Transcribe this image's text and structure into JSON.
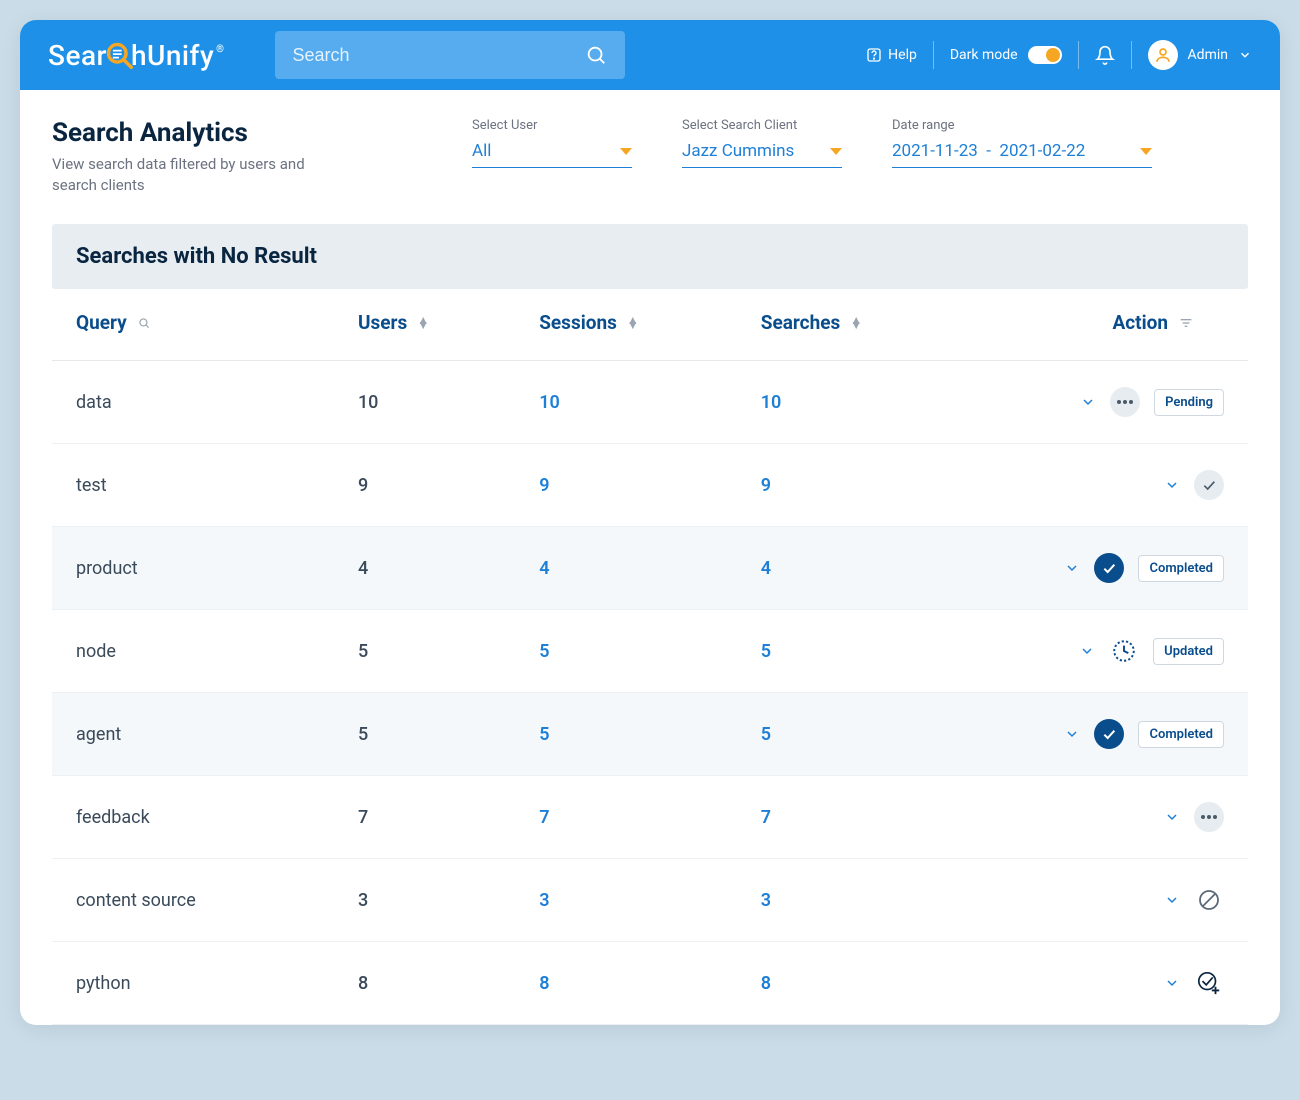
{
  "brand": {
    "name_left": "Sear",
    "name_right": "hUnify"
  },
  "topbar": {
    "search_placeholder": "Search",
    "help": "Help",
    "dark_mode": "Dark mode",
    "user_label": "Admin"
  },
  "page": {
    "title": "Search Analytics",
    "subtitle": "View search data filtered by users and search clients"
  },
  "filters": {
    "user": {
      "label": "Select User",
      "value": "All"
    },
    "client": {
      "label": "Select Search Client",
      "value": "Jazz Cummins"
    },
    "date": {
      "label": "Date range",
      "from": "2021-11-23",
      "to": "2021-02-22"
    }
  },
  "section_title": "Searches with No Result",
  "columns": {
    "query": "Query",
    "users": "Users",
    "sessions": "Sessions",
    "searches": "Searches",
    "action": "Action"
  },
  "rows": [
    {
      "query": "data",
      "users": "10",
      "sessions": "10",
      "searches": "10",
      "icon": "dots",
      "badge": "Pending",
      "shaded": false
    },
    {
      "query": "test",
      "users": "9",
      "sessions": "9",
      "searches": "9",
      "icon": "check-light",
      "badge": null,
      "shaded": false
    },
    {
      "query": "product",
      "users": "4",
      "sessions": "4",
      "searches": "4",
      "icon": "check-solid",
      "badge": "Completed",
      "shaded": true
    },
    {
      "query": "node",
      "users": "5",
      "sessions": "5",
      "searches": "5",
      "icon": "clock",
      "badge": "Updated",
      "shaded": false
    },
    {
      "query": "agent",
      "users": "5",
      "sessions": "5",
      "searches": "5",
      "icon": "check-solid",
      "badge": "Completed",
      "shaded": true
    },
    {
      "query": "feedback",
      "users": "7",
      "sessions": "7",
      "searches": "7",
      "icon": "dots",
      "badge": null,
      "shaded": false
    },
    {
      "query": "content source",
      "users": "3",
      "sessions": "3",
      "searches": "3",
      "icon": "ban",
      "badge": null,
      "shaded": false
    },
    {
      "query": "python",
      "users": "8",
      "sessions": "8",
      "searches": "8",
      "icon": "check-plus",
      "badge": null,
      "shaded": false
    }
  ],
  "colors": {
    "topbar_bg": "#1e90e8",
    "accent": "#f5a623",
    "link": "#1e7fd6",
    "heading": "#0a2540",
    "muted": "#6b7280",
    "section_bg": "#e7edf1",
    "row_shade": "#f4f8fa",
    "solid_check_bg": "#0a4d8c"
  }
}
